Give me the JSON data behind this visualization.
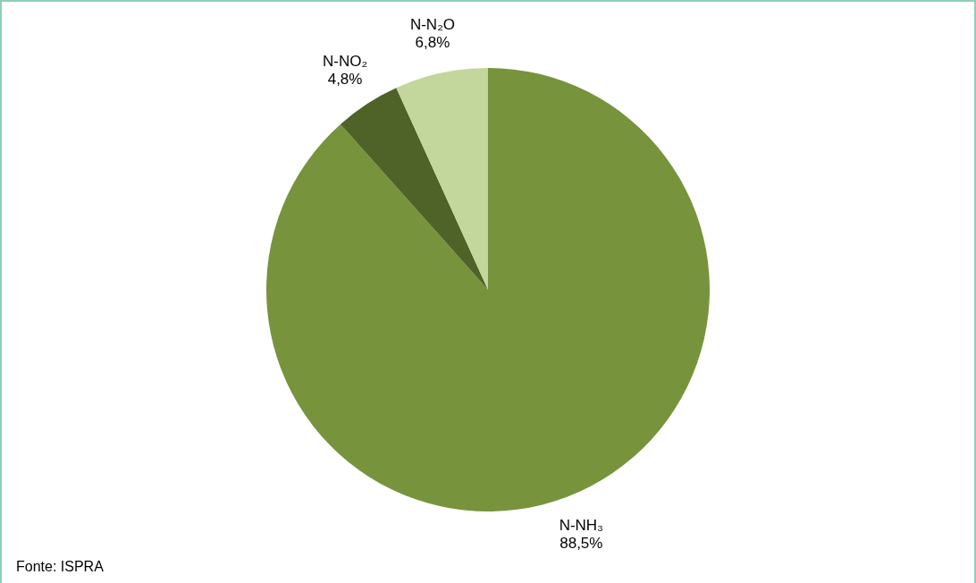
{
  "chart_data": {
    "type": "pie",
    "categories": [
      "N-NH₃",
      "N-NO₂",
      "N-N₂O"
    ],
    "values": [
      88.5,
      4.8,
      6.8
    ],
    "colors": [
      "#77933c",
      "#4f6228",
      "#c3d69b"
    ],
    "value_labels": [
      "88,5%",
      "4,8%",
      "6,8%"
    ],
    "annotations": [
      "Fonte: ISPRA"
    ]
  }
}
